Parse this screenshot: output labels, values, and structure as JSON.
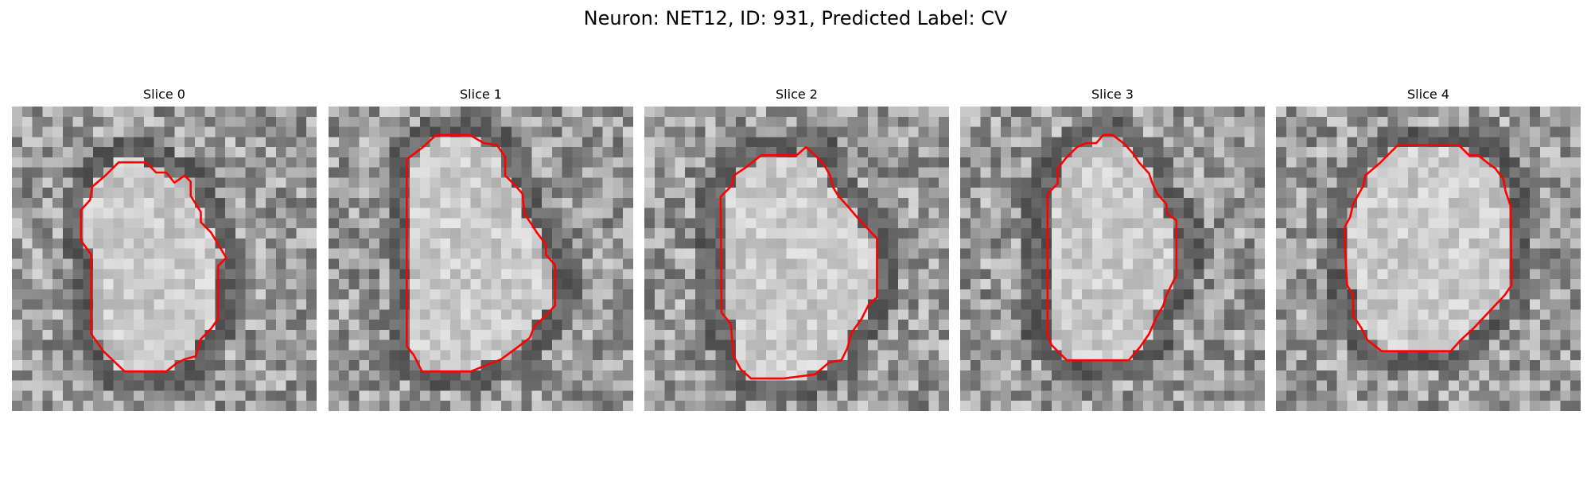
{
  "figure": {
    "title": "Neuron: NET12, ID: 931, Predicted Label: CV"
  },
  "panels": [
    {
      "title": "Slice 0"
    },
    {
      "title": "Slice 1"
    },
    {
      "title": "Slice 2"
    },
    {
      "title": "Slice 3"
    },
    {
      "title": "Slice 4"
    }
  ],
  "colors": {
    "contour": "#ff0000",
    "background": "#ffffff",
    "colormap": "grayscale"
  }
}
